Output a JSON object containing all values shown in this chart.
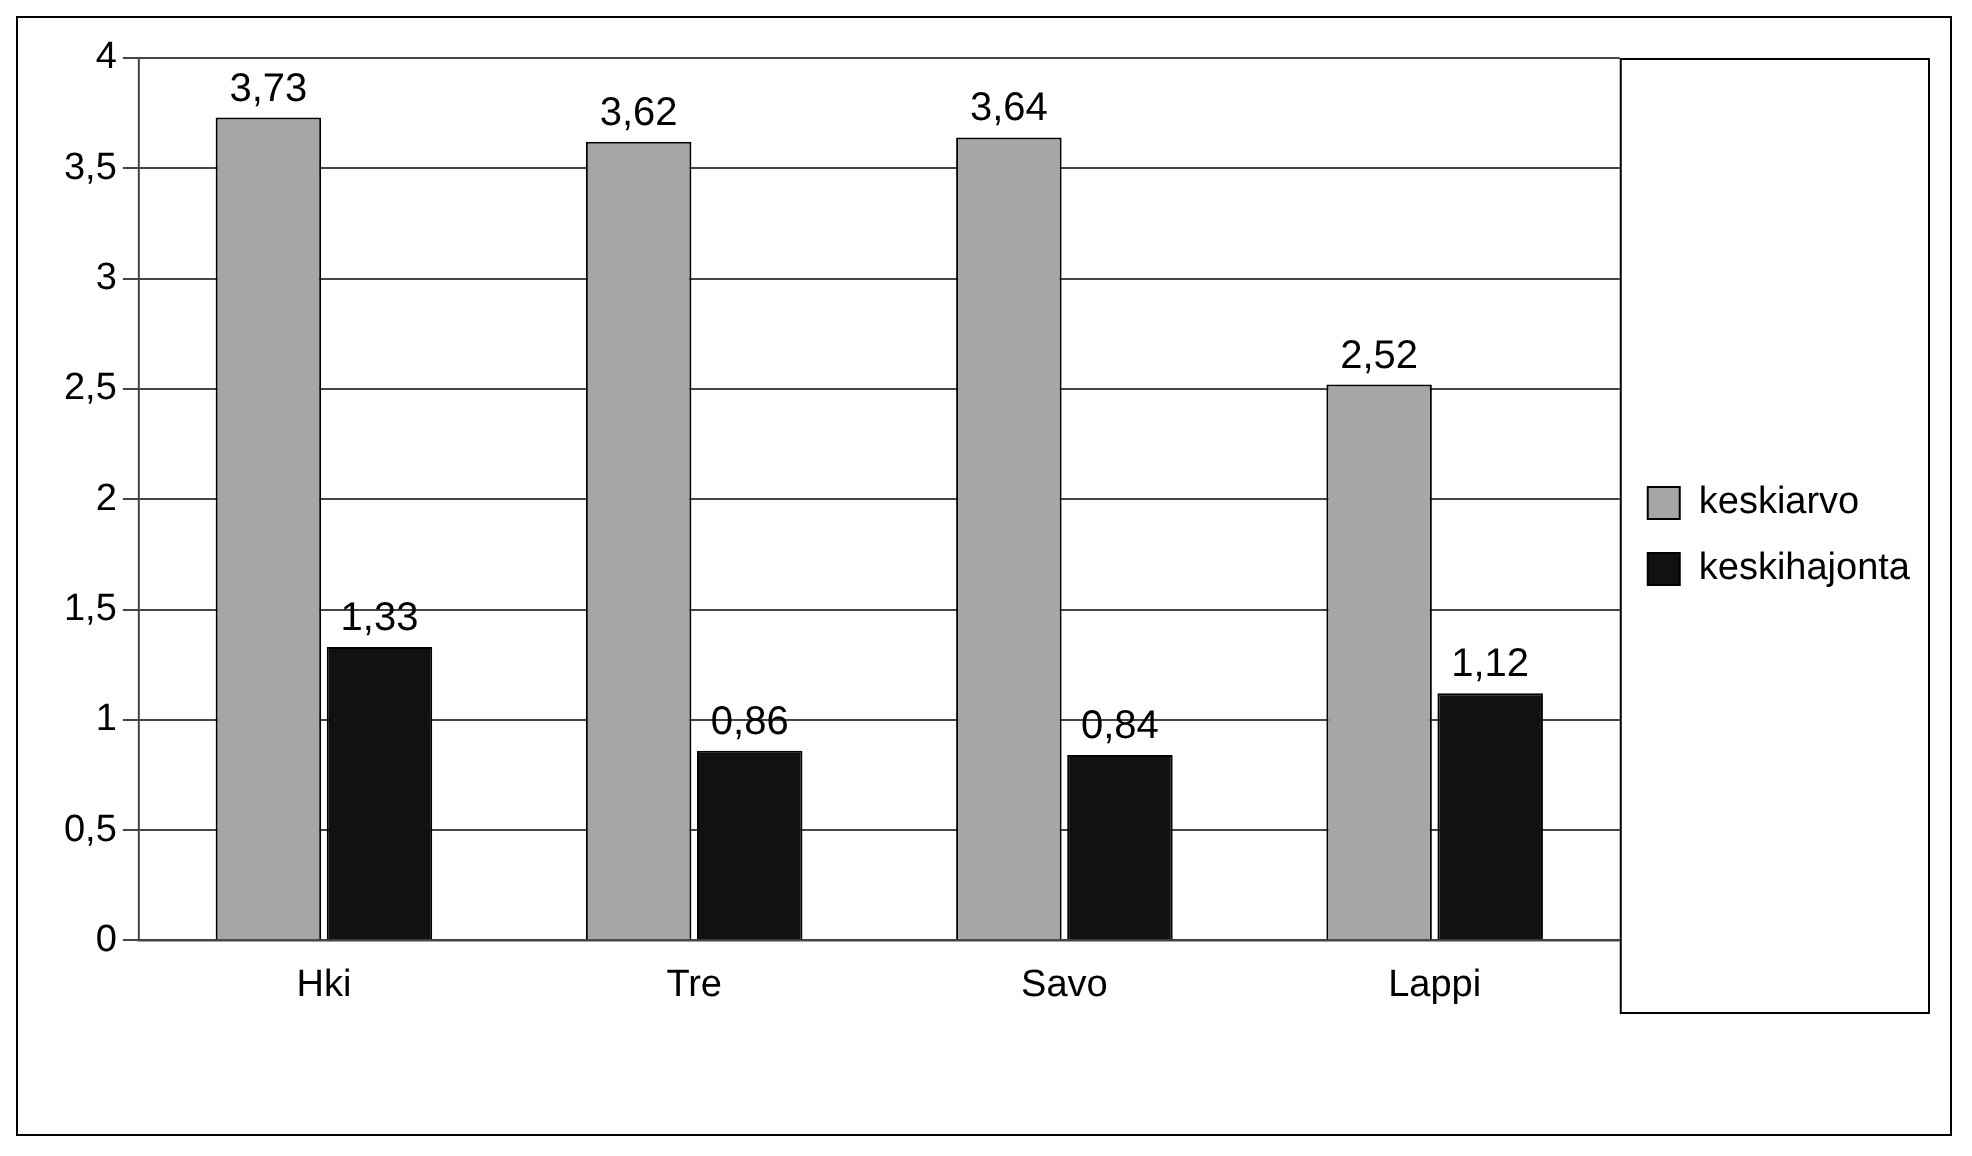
{
  "chart_data": {
    "type": "bar",
    "categories": [
      "Hki",
      "Tre",
      "Savo",
      "Lappi"
    ],
    "series": [
      {
        "name": "keskiarvo",
        "color": "#a6a6a6",
        "values": [
          3.73,
          3.62,
          3.64,
          2.52
        ],
        "value_labels": [
          "3,73",
          "3,62",
          "3,64",
          "2,52"
        ]
      },
      {
        "name": "keskihajonta",
        "color": "#111111",
        "values": [
          1.33,
          0.86,
          0.84,
          1.12
        ],
        "value_labels": [
          "1,33",
          "0,86",
          "0,84",
          "1,12"
        ]
      }
    ],
    "ylim": [
      0,
      4
    ],
    "yticks": [
      0,
      {
        "value": 0.5,
        "label": "0,5"
      },
      1,
      {
        "value": 1.5,
        "label": "1,5"
      },
      2,
      {
        "value": 2.5,
        "label": "2,5"
      },
      3,
      {
        "value": 3.5,
        "label": "3,5"
      },
      4
    ],
    "grid": "y",
    "legend": "right"
  }
}
